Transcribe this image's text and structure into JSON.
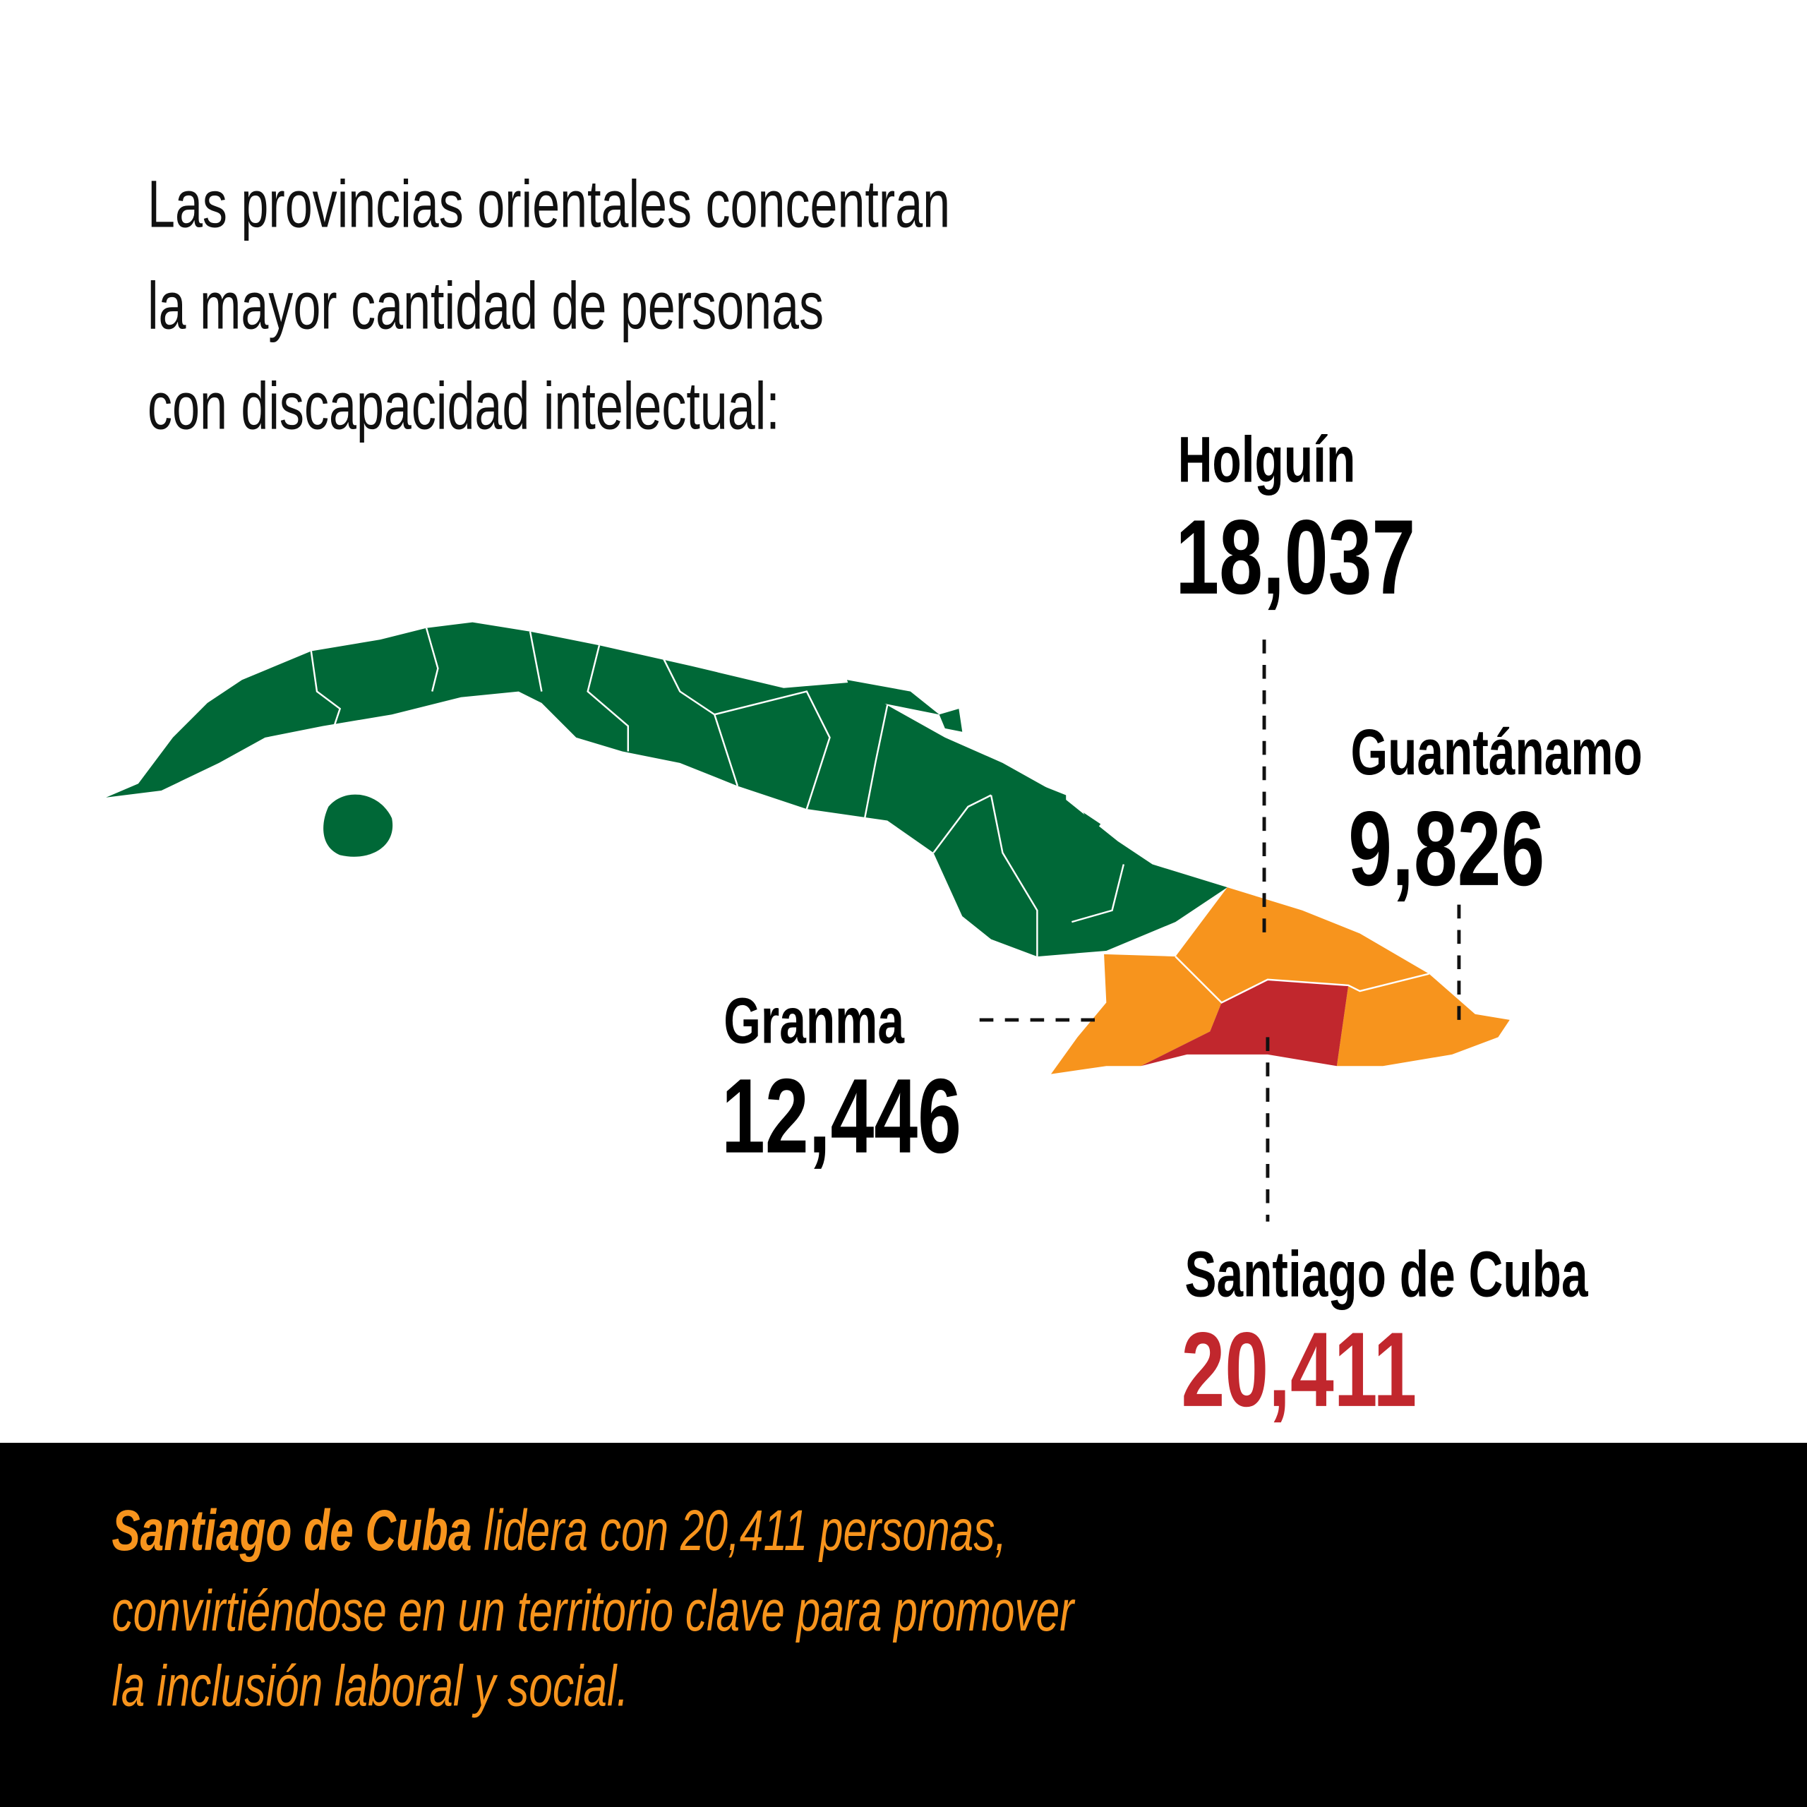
{
  "title": {
    "lines": [
      "Las provincias orientales concentran",
      "la mayor cantidad de personas",
      "con discapacidad intelectual:"
    ]
  },
  "regions": [
    {
      "name": "Holguín",
      "value": "18,037"
    },
    {
      "name": "Guantánamo",
      "value": "9,826"
    },
    {
      "name": "Granma",
      "value": "12,446"
    },
    {
      "name": "Santiago de Cuba",
      "value": "20,411"
    }
  ],
  "footer": {
    "highlight": "Santiago de Cuba",
    "lines": [
      "lidera con 20,411 personas,",
      "convirtiéndose en un territorio clave para promover",
      "la inclusión laboral y social."
    ]
  }
}
